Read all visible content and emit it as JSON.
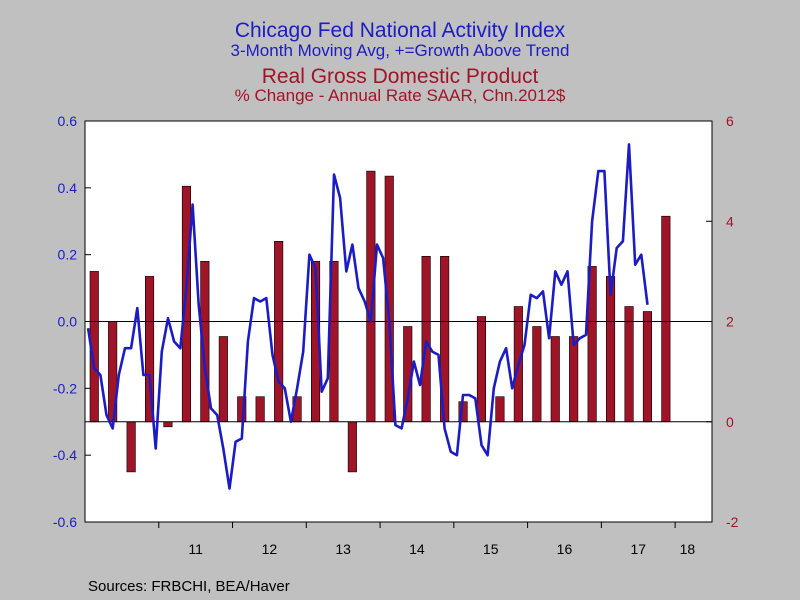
{
  "chart_data": {
    "type": "bar+line",
    "title": "Chicago Fed National Activity Index",
    "subtitle": "3-Month Moving Avg, +=Growth Above Trend",
    "title2": "Real Gross Domestic Product",
    "subtitle2": "% Change - Annual Rate    SAAR, Chn.2012$",
    "source": "Sources:  FRBCHI, BEA/Haver",
    "x_ticks": [
      "11",
      "12",
      "13",
      "14",
      "15",
      "16",
      "17",
      "18"
    ],
    "left_axis": {
      "ylim": [
        -0.6,
        0.6
      ],
      "ticks": [
        "0.6",
        "0.4",
        "0.2",
        "0.0",
        "-0.2",
        "-0.4",
        "-0.6"
      ]
    },
    "right_axis": {
      "ylim": [
        -2,
        6
      ],
      "ticks": [
        "6",
        "4",
        "2",
        "0",
        "-2"
      ]
    },
    "grid": false,
    "colors": {
      "line": "#1C1CC4",
      "bar": "#A01428",
      "plot_bg": "#FFFFFF",
      "page_bg": "#C0C0C0"
    },
    "series": [
      {
        "name": "Chicago Fed National Activity Index",
        "axis": "left",
        "kind": "line",
        "x_start": "2010-01",
        "step_months": 1,
        "values": [
          -0.02,
          -0.14,
          -0.16,
          -0.28,
          -0.32,
          -0.16,
          -0.08,
          -0.08,
          0.04,
          -0.16,
          -0.16,
          -0.38,
          -0.09,
          0.01,
          -0.06,
          -0.08,
          0.1,
          0.35,
          0.05,
          -0.14,
          -0.26,
          -0.28,
          -0.38,
          -0.5,
          -0.36,
          -0.35,
          -0.06,
          0.07,
          0.06,
          0.07,
          -0.1,
          -0.18,
          -0.2,
          -0.3,
          -0.2,
          -0.09,
          0.2,
          0.16,
          -0.21,
          -0.17,
          0.44,
          0.37,
          0.15,
          0.23,
          0.1,
          0.06,
          0.0,
          0.23,
          0.19,
          0.0,
          -0.31,
          -0.32,
          -0.23,
          -0.12,
          -0.19,
          -0.06,
          -0.09,
          -0.1,
          -0.32,
          -0.39,
          -0.4,
          -0.22,
          -0.22,
          -0.23,
          -0.37,
          -0.4,
          -0.2,
          -0.12,
          -0.08,
          -0.2,
          -0.13,
          -0.07,
          0.08,
          0.07,
          0.09,
          -0.05,
          0.15,
          0.11,
          0.15,
          -0.07,
          -0.05,
          -0.04,
          0.3,
          0.45,
          0.45,
          0.08,
          0.22,
          0.24,
          0.53,
          0.17,
          0.2,
          0.05
        ]
      },
      {
        "name": "Real Gross Domestic Product",
        "axis": "right",
        "kind": "bar",
        "x_start": "2010-Q1",
        "step_months": 3,
        "values": [
          3.0,
          2.0,
          -1.0,
          2.9,
          -0.1,
          4.7,
          3.2,
          1.7,
          0.5,
          0.5,
          3.6,
          0.5,
          3.2,
          3.2,
          -1.0,
          5.0,
          4.9,
          1.9,
          3.3,
          3.3,
          0.4,
          2.1,
          0.5,
          2.3,
          1.9,
          1.7,
          1.7,
          3.1,
          2.9,
          2.3,
          2.2,
          4.1
        ]
      }
    ]
  }
}
